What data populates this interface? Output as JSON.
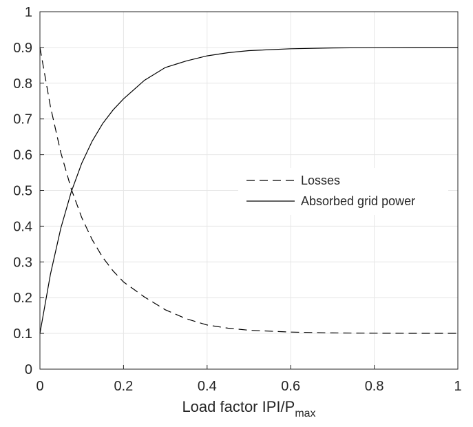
{
  "chart_data": {
    "type": "line",
    "title": "",
    "xlabel_main": "Load factor IPI/P",
    "xlabel_sub": "max",
    "ylabel": "",
    "xlim": [
      0,
      1
    ],
    "ylim": [
      0,
      1
    ],
    "xticks": [
      0,
      0.2,
      0.4,
      0.6,
      0.8,
      1
    ],
    "xtick_labels": [
      "0",
      "0.2",
      "0.4",
      "0.6",
      "0.8",
      "1"
    ],
    "yticks": [
      0,
      0.1,
      0.2,
      0.3,
      0.4,
      0.5,
      0.6,
      0.7,
      0.8,
      0.9,
      1
    ],
    "ytick_labels": [
      "0",
      "0.1",
      "0.2",
      "0.3",
      "0.4",
      "0.5",
      "0.6",
      "0.7",
      "0.8",
      "0.9",
      "1"
    ],
    "grid": true,
    "legend_position": "center-right",
    "x": [
      0,
      0.025,
      0.05,
      0.075,
      0.1,
      0.125,
      0.15,
      0.175,
      0.2,
      0.25,
      0.3,
      0.35,
      0.4,
      0.45,
      0.5,
      0.6,
      0.7,
      0.8,
      0.9,
      1.0
    ],
    "series": [
      {
        "name": "Losses",
        "style": "dashed",
        "color": "#000000",
        "values": [
          0.9,
          0.735,
          0.606,
          0.504,
          0.424,
          0.362,
          0.313,
          0.275,
          0.244,
          0.202,
          0.166,
          0.141,
          0.1236,
          0.1146,
          0.1089,
          0.1036,
          0.1014,
          0.1006,
          0.1002,
          0.1001
        ]
      },
      {
        "name": "Absorbed grid power",
        "style": "solid",
        "color": "#000000",
        "values": [
          0.1,
          0.265,
          0.394,
          0.496,
          0.576,
          0.638,
          0.687,
          0.725,
          0.756,
          0.808,
          0.844,
          0.862,
          0.8764,
          0.8854,
          0.8911,
          0.8964,
          0.8986,
          0.8994,
          0.8998,
          0.8999
        ]
      }
    ]
  }
}
